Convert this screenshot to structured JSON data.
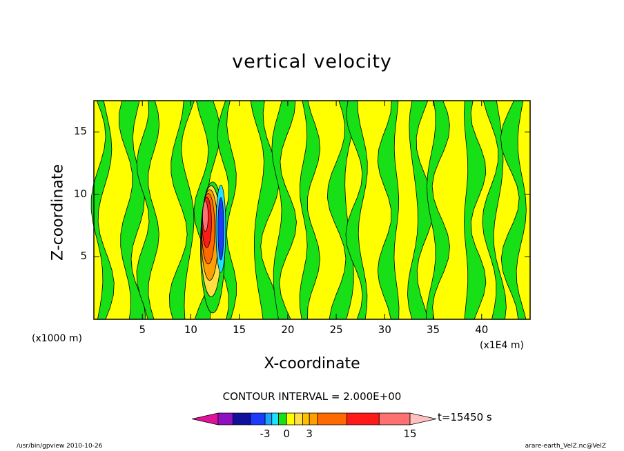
{
  "chart_data": {
    "type": "heatmap",
    "title": "vertical velocity",
    "xlabel": "X-coordinate",
    "ylabel": "Z-coordinate",
    "x_unit_left": "(x1000 m)",
    "x_unit_right": "(x1E4 m)",
    "xlim": [
      0,
      45
    ],
    "ylim": [
      0,
      17.5
    ],
    "x_ticks": [
      "5",
      "10",
      "15",
      "20",
      "25",
      "30",
      "35",
      "40"
    ],
    "x_tick_values": [
      5,
      10,
      15,
      20,
      25,
      30,
      35,
      40
    ],
    "y_ticks": [
      "5",
      "10",
      "15"
    ],
    "y_tick_values": [
      5,
      10,
      15
    ],
    "contour_interval_label": "CONTOUR INTERVAL = 2.000E+00",
    "time_label": "t=15450 s",
    "colorbar": {
      "labels": [
        "-3",
        "0",
        "3",
        "15"
      ],
      "label_values": [
        -3,
        0,
        3,
        15
      ],
      "bins": [
        {
          "lo": -99,
          "hi": -9,
          "color": "#e0109a"
        },
        {
          "lo": -9,
          "hi": -6,
          "color": "#8e10c0"
        },
        {
          "lo": -6,
          "hi": -4,
          "color": "#10109a"
        },
        {
          "lo": -4,
          "hi": -3,
          "color": "#1a3cff"
        },
        {
          "lo": -3,
          "hi": -2,
          "color": "#1aa4ff"
        },
        {
          "lo": -2,
          "hi": -1,
          "color": "#20e0ff"
        },
        {
          "lo": -1,
          "hi": 0,
          "color": "#17e017"
        },
        {
          "lo": 0,
          "hi": 1,
          "color": "#ffff00"
        },
        {
          "lo": 1,
          "hi": 2,
          "color": "#ffe040"
        },
        {
          "lo": 2,
          "hi": 3,
          "color": "#ffc000"
        },
        {
          "lo": 3,
          "hi": 4,
          "color": "#ffa000"
        },
        {
          "lo": 4,
          "hi": 7,
          "color": "#ff6a00"
        },
        {
          "lo": 7,
          "hi": 10,
          "color": "#ff1a1a"
        },
        {
          "lo": 10,
          "hi": 15,
          "color": "#ff7070"
        },
        {
          "lo": 15,
          "hi": 99,
          "color": "#ffc0c0"
        }
      ]
    },
    "field_colors": {
      "negative": "#17e017",
      "positive": "#ffff00",
      "contour_line": "#000000"
    },
    "updraft_region": {
      "x_range": [
        11.0,
        13.5
      ],
      "z_range": [
        0.5,
        11
      ],
      "max_w": 15,
      "min_w": -4
    }
  },
  "footer": {
    "left": "/usr/bin/gpview   2010-10-26",
    "right": "arare-earth_VelZ.nc@VelZ"
  }
}
